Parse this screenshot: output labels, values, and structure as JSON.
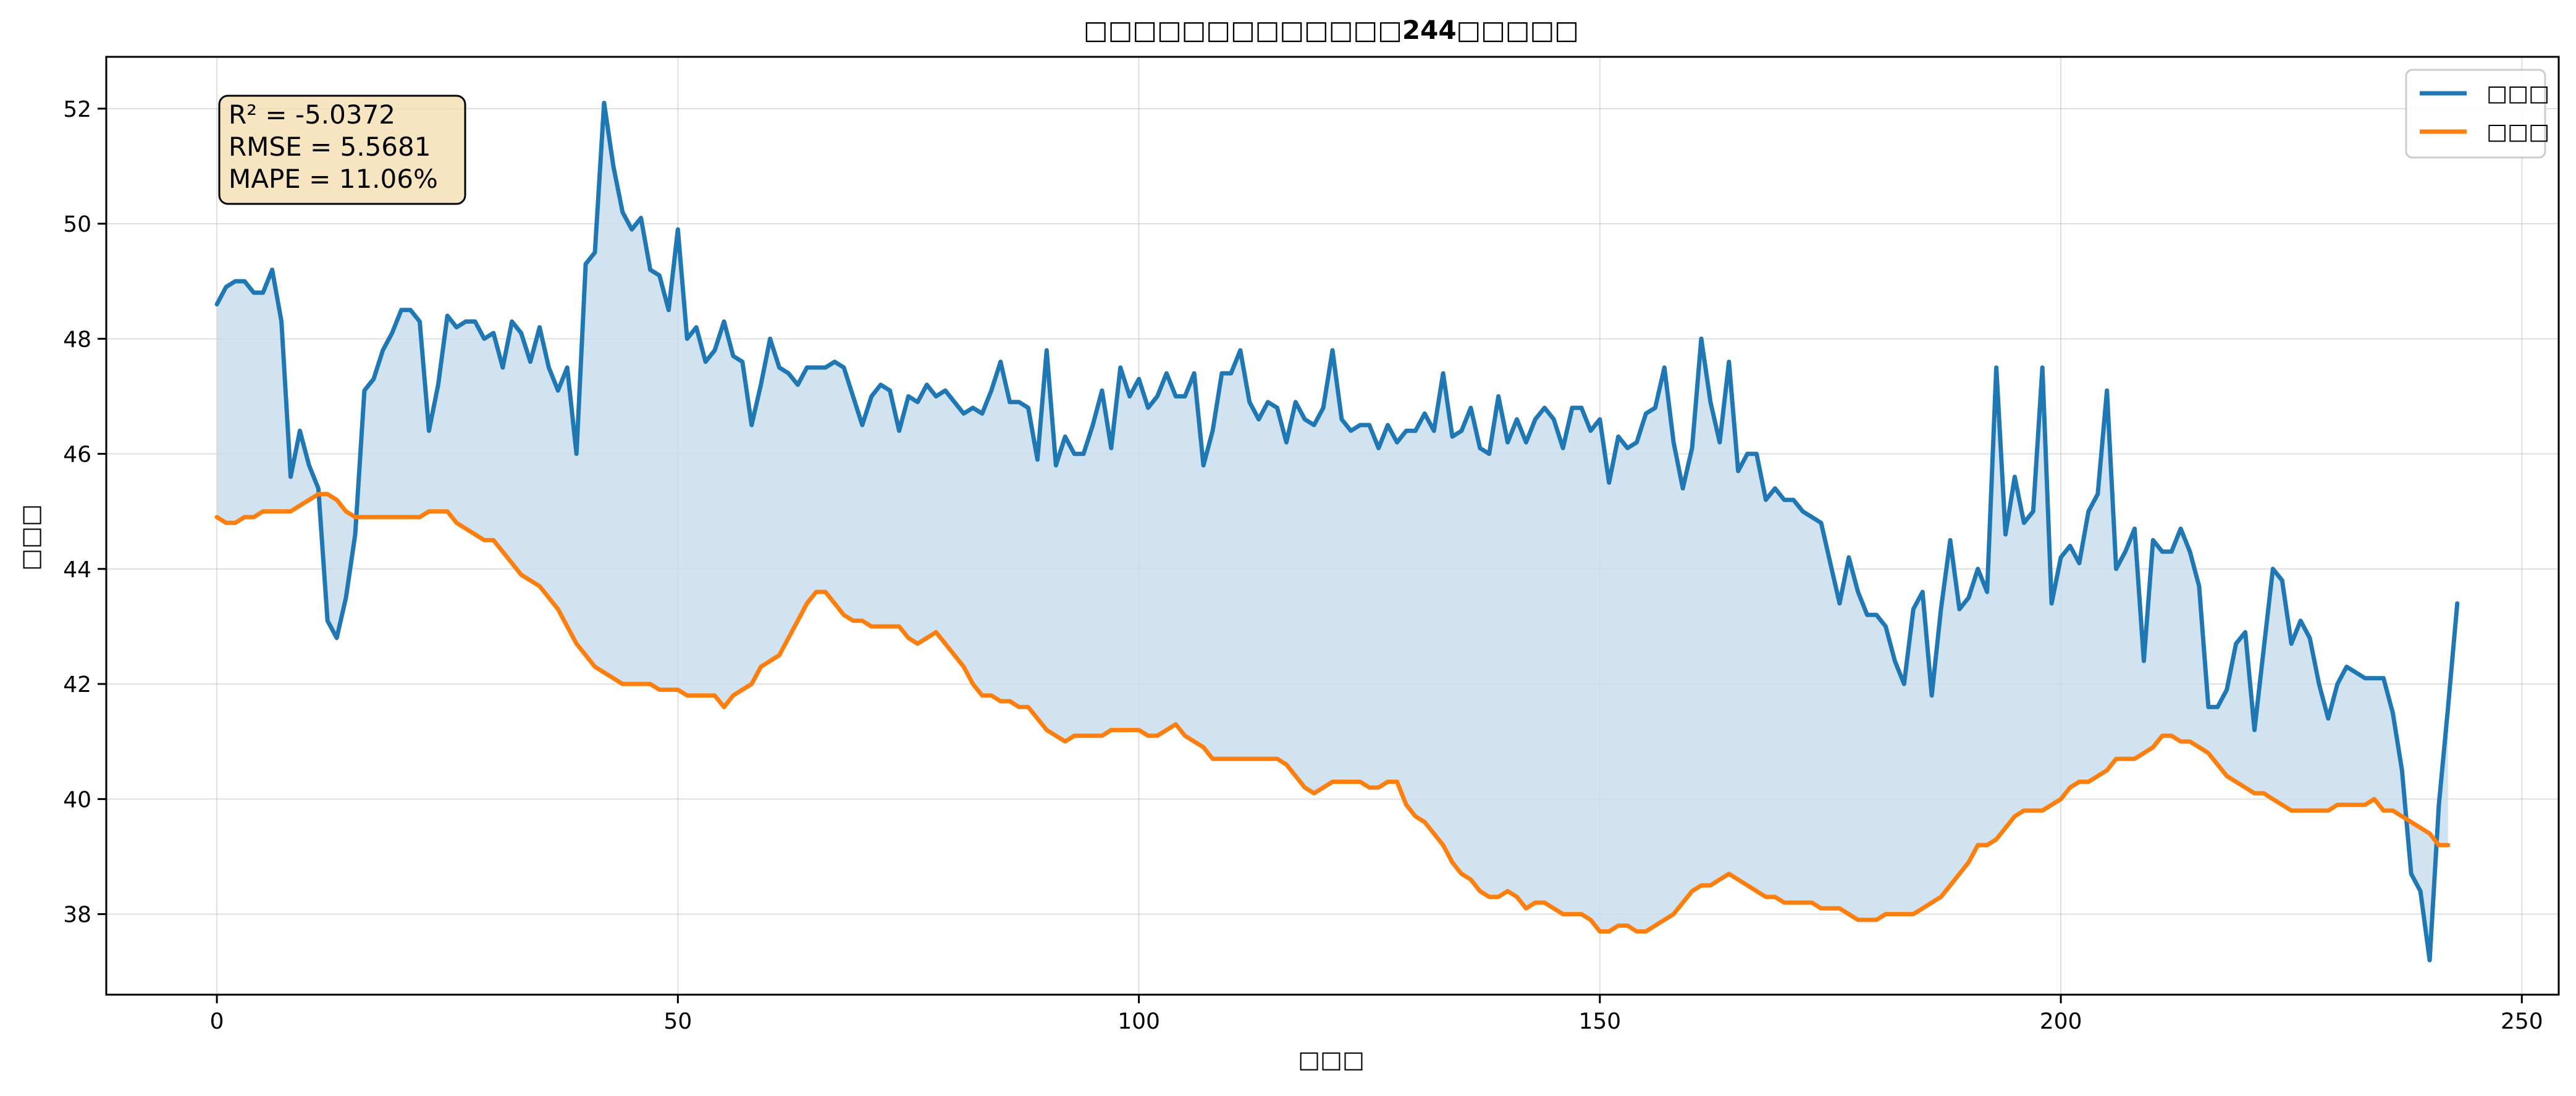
{
  "chart_data": {
    "type": "line",
    "title": "□□□□□□□□□□□□□244□□□□□",
    "xlabel": "□□□",
    "ylabel": "□□□",
    "xlim": [
      -12,
      254
    ],
    "ylim": [
      36.6,
      52.9
    ],
    "xticks": [
      0,
      50,
      100,
      150,
      200,
      250
    ],
    "yticks": [
      38,
      40,
      42,
      44,
      46,
      48,
      50,
      52
    ],
    "grid": true,
    "legend_position": "top-right",
    "fill_between": {
      "color": "#c6dcec",
      "opacity": 0.8
    },
    "metrics": {
      "r2": "R² = -5.0372",
      "rmse": "RMSE = 5.5681",
      "mape": "MAPE = 11.06%"
    },
    "series": [
      {
        "name": "□□□",
        "color": "#1f77b4",
        "y": [
          48.6,
          48.9,
          49.0,
          49.0,
          48.8,
          48.8,
          49.2,
          48.3,
          45.6,
          46.4,
          45.8,
          45.4,
          43.1,
          42.8,
          43.5,
          44.6,
          47.1,
          47.3,
          47.8,
          48.1,
          48.5,
          48.5,
          48.3,
          46.4,
          47.2,
          48.4,
          48.2,
          48.3,
          48.3,
          48.0,
          48.1,
          47.5,
          48.3,
          48.1,
          47.6,
          48.2,
          47.5,
          47.1,
          47.5,
          46.0,
          49.3,
          49.5,
          52.1,
          51.0,
          50.2,
          49.9,
          50.1,
          49.2,
          49.1,
          48.5,
          49.9,
          48.0,
          48.2,
          47.6,
          47.8,
          48.3,
          47.7,
          47.6,
          46.5,
          47.2,
          48.0,
          47.5,
          47.4,
          47.2,
          47.5,
          47.5,
          47.5,
          47.6,
          47.5,
          47.0,
          46.5,
          47.0,
          47.2,
          47.1,
          46.4,
          47.0,
          46.9,
          47.2,
          47.0,
          47.1,
          46.9,
          46.7,
          46.8,
          46.7,
          47.1,
          47.6,
          46.9,
          46.9,
          46.8,
          45.9,
          47.8,
          45.8,
          46.3,
          46.0,
          46.0,
          46.5,
          47.1,
          46.1,
          47.5,
          47.0,
          47.3,
          46.8,
          47.0,
          47.4,
          47.0,
          47.0,
          47.4,
          45.8,
          46.4,
          47.4,
          47.4,
          47.8,
          46.9,
          46.6,
          46.9,
          46.8,
          46.2,
          46.9,
          46.6,
          46.5,
          46.8,
          47.8,
          46.6,
          46.4,
          46.5,
          46.5,
          46.1,
          46.5,
          46.2,
          46.4,
          46.4,
          46.7,
          46.4,
          47.4,
          46.3,
          46.4,
          46.8,
          46.1,
          46.0,
          47.0,
          46.2,
          46.6,
          46.2,
          46.6,
          46.8,
          46.6,
          46.1,
          46.8,
          46.8,
          46.4,
          46.6,
          45.5,
          46.3,
          46.1,
          46.2,
          46.7,
          46.8,
          47.5,
          46.2,
          45.4,
          46.1,
          48.0,
          46.9,
          46.2,
          47.6,
          45.7,
          46.0,
          46.0,
          45.2,
          45.4,
          45.2,
          45.2,
          45.0,
          44.9,
          44.8,
          44.1,
          43.4,
          44.2,
          43.6,
          43.2,
          43.2,
          43.0,
          42.4,
          42.0,
          43.3,
          43.6,
          41.8,
          43.3,
          44.5,
          43.3,
          43.5,
          44.0,
          43.6,
          47.5,
          44.6,
          45.6,
          44.8,
          45.0,
          47.5,
          43.4,
          44.2,
          44.4,
          44.1,
          45.0,
          45.3,
          47.1,
          44.0,
          44.3,
          44.7,
          42.4,
          44.5,
          44.3,
          44.3,
          44.7,
          44.3,
          43.7,
          41.6,
          41.6,
          41.9,
          42.7,
          42.9,
          41.2,
          42.6,
          44.0,
          43.8,
          42.7,
          43.1,
          42.8,
          42.0,
          41.4,
          42.0,
          42.3,
          42.2,
          42.1,
          42.1,
          42.1,
          41.5,
          40.5,
          38.7,
          38.4,
          37.2,
          39.9,
          41.6,
          43.4
        ]
      },
      {
        "name": "□□□",
        "color": "#ff7f0e",
        "y": [
          44.9,
          44.8,
          44.8,
          44.9,
          44.9,
          45.0,
          45.0,
          45.0,
          45.0,
          45.1,
          45.2,
          45.3,
          45.3,
          45.2,
          45.0,
          44.9,
          44.9,
          44.9,
          44.9,
          44.9,
          44.9,
          44.9,
          44.9,
          45.0,
          45.0,
          45.0,
          44.8,
          44.7,
          44.6,
          44.5,
          44.5,
          44.3,
          44.1,
          43.9,
          43.8,
          43.7,
          43.5,
          43.3,
          43.0,
          42.7,
          42.5,
          42.3,
          42.2,
          42.1,
          42.0,
          42.0,
          42.0,
          42.0,
          41.9,
          41.9,
          41.9,
          41.8,
          41.8,
          41.8,
          41.8,
          41.6,
          41.8,
          41.9,
          42.0,
          42.3,
          42.4,
          42.5,
          42.8,
          43.1,
          43.4,
          43.6,
          43.6,
          43.4,
          43.2,
          43.1,
          43.1,
          43.0,
          43.0,
          43.0,
          43.0,
          42.8,
          42.7,
          42.8,
          42.9,
          42.7,
          42.5,
          42.3,
          42.0,
          41.8,
          41.8,
          41.7,
          41.7,
          41.6,
          41.6,
          41.4,
          41.2,
          41.1,
          41.0,
          41.1,
          41.1,
          41.1,
          41.1,
          41.2,
          41.2,
          41.2,
          41.2,
          41.1,
          41.1,
          41.2,
          41.3,
          41.1,
          41.0,
          40.9,
          40.7,
          40.7,
          40.7,
          40.7,
          40.7,
          40.7,
          40.7,
          40.7,
          40.6,
          40.4,
          40.2,
          40.1,
          40.2,
          40.3,
          40.3,
          40.3,
          40.3,
          40.2,
          40.2,
          40.3,
          40.3,
          39.9,
          39.7,
          39.6,
          39.4,
          39.2,
          38.9,
          38.7,
          38.6,
          38.4,
          38.3,
          38.3,
          38.4,
          38.3,
          38.1,
          38.2,
          38.2,
          38.1,
          38.0,
          38.0,
          38.0,
          37.9,
          37.7,
          37.7,
          37.8,
          37.8,
          37.7,
          37.7,
          37.8,
          37.9,
          38.0,
          38.2,
          38.4,
          38.5,
          38.5,
          38.6,
          38.7,
          38.6,
          38.5,
          38.4,
          38.3,
          38.3,
          38.2,
          38.2,
          38.2,
          38.2,
          38.1,
          38.1,
          38.1,
          38.0,
          37.9,
          37.9,
          37.9,
          38.0,
          38.0,
          38.0,
          38.0,
          38.1,
          38.2,
          38.3,
          38.5,
          38.7,
          38.9,
          39.2,
          39.2,
          39.3,
          39.5,
          39.7,
          39.8,
          39.8,
          39.8,
          39.9,
          40.0,
          40.2,
          40.3,
          40.3,
          40.4,
          40.5,
          40.7,
          40.7,
          40.7,
          40.8,
          40.9,
          41.1,
          41.1,
          41.0,
          41.0,
          40.9,
          40.8,
          40.6,
          40.4,
          40.3,
          40.2,
          40.1,
          40.1,
          40.0,
          39.9,
          39.8,
          39.8,
          39.8,
          39.8,
          39.8,
          39.9,
          39.9,
          39.9,
          39.9,
          40.0,
          39.8,
          39.8,
          39.7,
          39.6,
          39.5,
          39.4,
          39.2,
          39.2
        ]
      }
    ]
  }
}
